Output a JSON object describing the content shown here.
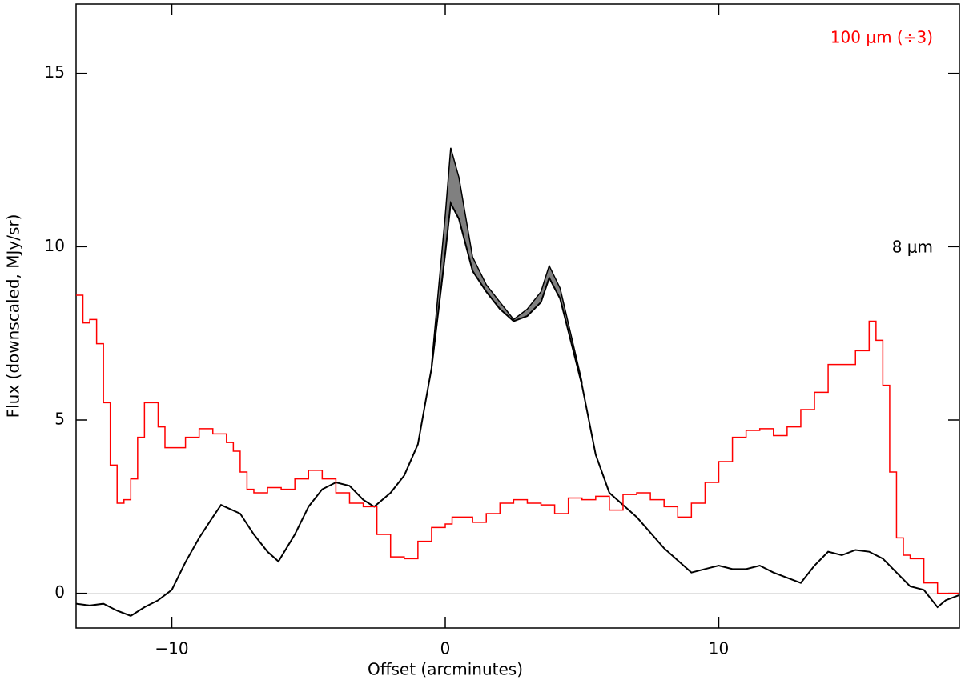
{
  "chart_data": {
    "type": "line",
    "xlabel": "Offset (arcminutes)",
    "ylabel": "Flux (downscaled, MJy/sr)",
    "xlim": [
      -13.5,
      18.8
    ],
    "ylim": [
      -1,
      17
    ],
    "xticks": [
      {
        "value": -10,
        "label": "−10"
      },
      0,
      10
    ],
    "yticks": [
      0,
      5,
      10,
      15
    ],
    "zero_line": true,
    "series": [
      {
        "name": "8 μm",
        "color": "#000000",
        "x": [
          -13.5,
          -13,
          -12.5,
          -12,
          -11.5,
          -11,
          -10.5,
          -10,
          -9.5,
          -9,
          -8.5,
          -8.2,
          -7.5,
          -7,
          -6.5,
          -6.1,
          -5.5,
          -5,
          -4.5,
          -4,
          -3.5,
          -3,
          -2.6,
          -2,
          -1.5,
          -1,
          -0.5,
          0,
          0.2,
          0.5,
          1,
          1.5,
          2,
          2.5,
          3,
          3.5,
          3.8,
          4.2,
          5,
          5.5,
          6,
          7,
          8,
          9,
          10,
          10.5,
          11,
          11.5,
          12,
          13,
          13.5,
          14,
          14.5,
          15,
          15.5,
          16,
          17,
          17.5,
          18,
          18.3,
          18.8
        ],
        "values": [
          -0.3,
          -0.35,
          -0.3,
          -0.5,
          -0.65,
          -0.4,
          -0.2,
          0.1,
          0.9,
          1.6,
          2.2,
          2.55,
          2.3,
          1.7,
          1.2,
          0.92,
          1.7,
          2.5,
          3.0,
          3.2,
          3.1,
          2.7,
          2.5,
          2.9,
          3.4,
          4.3,
          6.5,
          9.8,
          11.25,
          10.8,
          9.3,
          8.7,
          8.2,
          7.85,
          8.0,
          8.4,
          9.1,
          8.5,
          6.0,
          4.0,
          2.9,
          2.2,
          1.3,
          0.6,
          0.8,
          0.7,
          0.7,
          0.8,
          0.6,
          0.3,
          0.8,
          1.2,
          1.1,
          1.25,
          1.2,
          1.0,
          0.2,
          0.1,
          -0.4,
          -0.2,
          -0.05
        ]
      },
      {
        "name": "100 μm (÷3)",
        "color": "#ff0000",
        "step": true,
        "x": [
          -13.5,
          -13.25,
          -13,
          -12.75,
          -12.5,
          -12.25,
          -12,
          -11.75,
          -11.5,
          -11.25,
          -11,
          -10.75,
          -10.5,
          -10.25,
          -10,
          -9.5,
          -9,
          -8.5,
          -8,
          -7.75,
          -7.5,
          -7.25,
          -7,
          -6.5,
          -6,
          -5.5,
          -5,
          -4.5,
          -4,
          -3.5,
          -3,
          -2.5,
          -2,
          -1.5,
          -1,
          -0.5,
          0,
          0.25,
          0.5,
          1,
          1.5,
          2,
          2.5,
          3,
          3.5,
          4,
          4.5,
          5,
          5.5,
          6,
          6.5,
          7,
          7.5,
          8,
          8.5,
          9,
          9.5,
          10,
          10.5,
          11,
          11.5,
          12,
          12.5,
          13,
          13.5,
          14,
          14.5,
          15,
          15.5,
          15.75,
          16,
          16.25,
          16.5,
          16.75,
          17,
          17.5,
          18,
          18.8
        ],
        "values": [
          8.6,
          7.8,
          7.9,
          7.2,
          5.5,
          3.7,
          2.6,
          2.7,
          3.3,
          4.5,
          5.5,
          5.5,
          4.8,
          4.2,
          4.2,
          4.5,
          4.75,
          4.6,
          4.35,
          4.1,
          3.5,
          3.0,
          2.9,
          3.05,
          3.0,
          3.3,
          3.55,
          3.3,
          2.9,
          2.6,
          2.5,
          1.7,
          1.05,
          1.0,
          1.5,
          1.9,
          2.0,
          2.2,
          2.2,
          2.05,
          2.3,
          2.6,
          2.7,
          2.6,
          2.55,
          2.3,
          2.75,
          2.7,
          2.8,
          2.4,
          2.85,
          2.9,
          2.7,
          2.5,
          2.2,
          2.6,
          3.2,
          3.8,
          4.5,
          4.7,
          4.75,
          4.55,
          4.8,
          5.3,
          5.8,
          6.6,
          6.6,
          7.0,
          7.85,
          7.3,
          6.0,
          3.5,
          1.6,
          1.1,
          1.0,
          0.3,
          0.0,
          0.0
        ]
      }
    ],
    "band": {
      "color": "#808080",
      "x": [
        -0.5,
        0,
        0.2,
        0.5,
        1,
        1.5,
        2,
        2.5,
        3,
        3.5,
        3.8,
        4.2,
        5
      ],
      "lower": [
        6.5,
        9.8,
        11.25,
        10.8,
        9.3,
        8.7,
        8.2,
        7.85,
        8.0,
        8.4,
        9.1,
        8.5,
        6.0
      ],
      "upper": [
        6.6,
        10.9,
        12.85,
        12.0,
        9.7,
        8.9,
        8.4,
        7.9,
        8.2,
        8.7,
        9.45,
        8.8,
        6.1
      ]
    }
  }
}
